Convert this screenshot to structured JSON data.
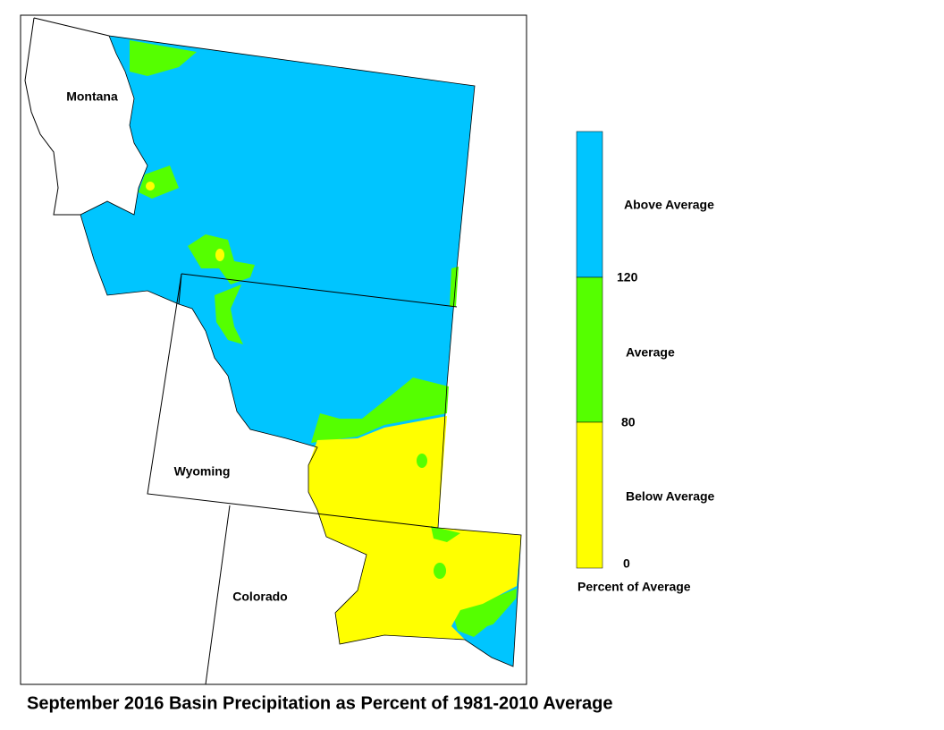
{
  "title": "September 2016 Basin Precipitation as Percent of 1981-2010 Average",
  "states": [
    {
      "label": "Montana"
    },
    {
      "label": "Wyoming"
    },
    {
      "label": "Colorado"
    }
  ],
  "legend": {
    "title": "Percent of Average",
    "classes": [
      {
        "label": "Above Average",
        "color": "#00c5ff"
      },
      {
        "label": "Average",
        "color": "#55ff00"
      },
      {
        "label": "Below Average",
        "color": "#ffff00"
      }
    ],
    "breaks": [
      120,
      80,
      0
    ]
  }
}
